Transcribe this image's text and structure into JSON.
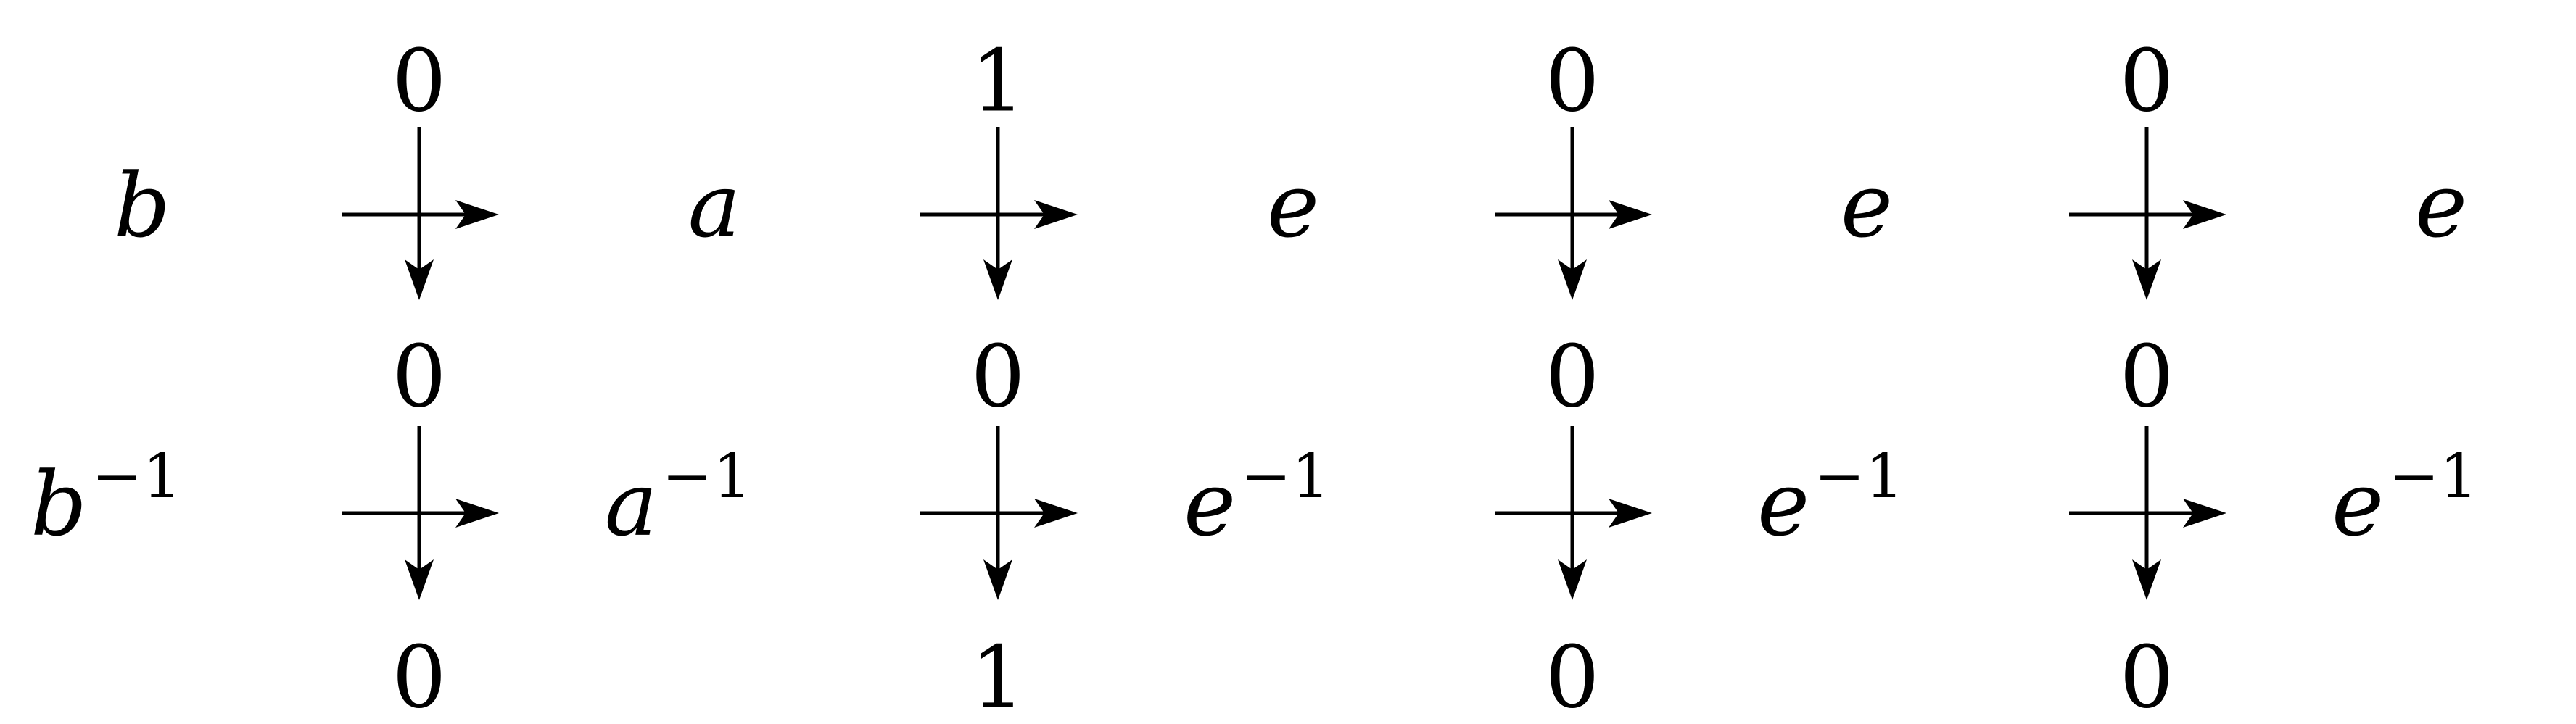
{
  "rows": [
    {
      "labels": [
        "b",
        "a",
        "e",
        "e",
        "e"
      ],
      "exponent": "",
      "crossings": [
        {
          "top": "0",
          "bottom": "0"
        },
        {
          "top": "1",
          "bottom": "0"
        },
        {
          "top": "0",
          "bottom": "0"
        },
        {
          "top": "0",
          "bottom": "0"
        }
      ]
    },
    {
      "labels": [
        "b",
        "a",
        "e",
        "e",
        "e"
      ],
      "exponent": "−1",
      "crossings": [
        {
          "top": "0",
          "bottom": "0"
        },
        {
          "top": "0",
          "bottom": "1"
        },
        {
          "top": "0",
          "bottom": "0"
        },
        {
          "top": "0",
          "bottom": "0"
        }
      ]
    }
  ]
}
